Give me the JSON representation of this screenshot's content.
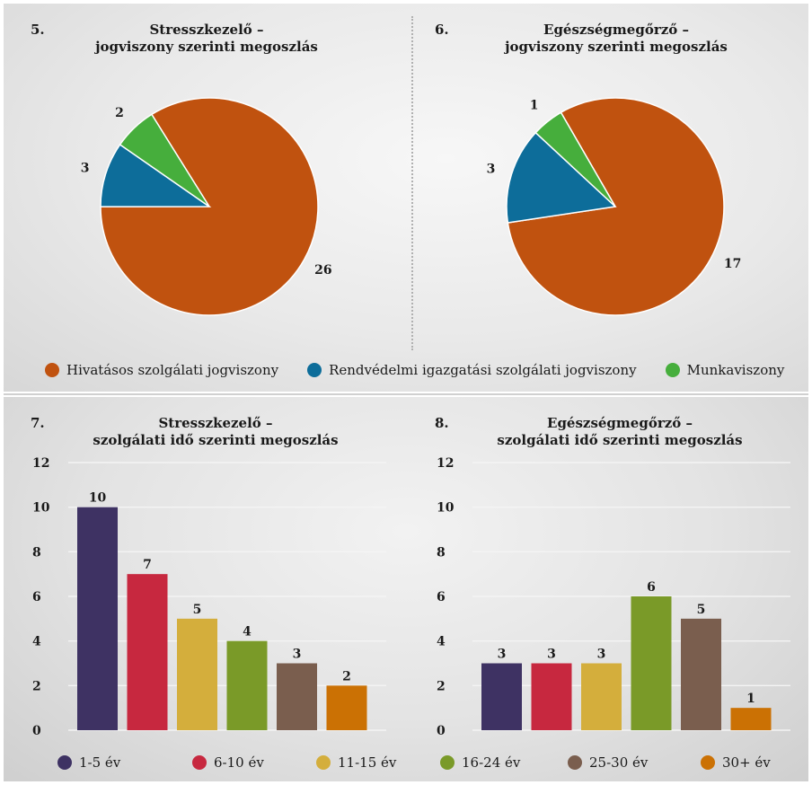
{
  "chart_data": [
    {
      "type": "pie",
      "number": "5.",
      "title_line1": "Stresszkezelő –",
      "title_line2": "jogviszony szerinti megoszlás",
      "categories": [
        "Hivatásos szolgálati jogviszony",
        "Rendvédelmi igazgatási szolgálati jogviszony",
        "Munkaviszony"
      ],
      "values": [
        26,
        3,
        2
      ],
      "labels": [
        "26",
        "3",
        "2"
      ],
      "colors": [
        "#c0520f",
        "#0d6d9a",
        "#46ae3c"
      ]
    },
    {
      "type": "pie",
      "number": "6.",
      "title_line1": "Egészségmegőrző –",
      "title_line2": "jogviszony szerinti megoszlás",
      "categories": [
        "Hivatásos szolgálati jogviszony",
        "Rendvédelmi igazgatási szolgálati jogviszony",
        "Munkaviszony"
      ],
      "values": [
        17,
        3,
        1
      ],
      "labels": [
        "17",
        "3",
        "1"
      ],
      "colors": [
        "#c0520f",
        "#0d6d9a",
        "#46ae3c"
      ]
    },
    {
      "type": "bar",
      "number": "7.",
      "title_line1": "Stresszkezelő –",
      "title_line2": "szolgálati idő szerinti megoszlás",
      "categories": [
        "1-5 év",
        "6-10 év",
        "11-15 év",
        "16-24 év",
        "25-30 év",
        "30+ év"
      ],
      "values": [
        10,
        7,
        5,
        4,
        3,
        2
      ],
      "value_labels": [
        "10",
        "7",
        "5",
        "4",
        "3",
        "2"
      ],
      "yticks": [
        "0",
        "2",
        "4",
        "6",
        "8",
        "10",
        "12"
      ],
      "ylim": [
        0,
        12
      ],
      "grid": true,
      "colors": [
        "#3e3263",
        "#c7283f",
        "#d4ae3c",
        "#7a9a28",
        "#7a5e4e",
        "#cb7104"
      ]
    },
    {
      "type": "bar",
      "number": "8.",
      "title_line1": "Egészségmegőrző –",
      "title_line2": "szolgálati idő szerinti megoszlás",
      "categories": [
        "1-5 év",
        "6-10 év",
        "11-15 év",
        "16-24 év",
        "25-30 év",
        "30+ év"
      ],
      "values": [
        3,
        3,
        3,
        6,
        5,
        1
      ],
      "value_labels": [
        "3",
        "3",
        "3",
        "6",
        "5",
        "1"
      ],
      "yticks": [
        "0",
        "2",
        "4",
        "6",
        "8",
        "10",
        "12"
      ],
      "ylim": [
        0,
        12
      ],
      "grid": true,
      "colors": [
        "#3e3263",
        "#c7283f",
        "#d4ae3c",
        "#7a9a28",
        "#7a5e4e",
        "#cb7104"
      ]
    }
  ],
  "legend_top": [
    {
      "label": "Hivatásos szolgálati jogviszony",
      "color": "#c0520f"
    },
    {
      "label": "Rendvédelmi igazgatási szolgálati jogviszony",
      "color": "#0d6d9a"
    },
    {
      "label": "Munkaviszony",
      "color": "#46ae3c"
    }
  ],
  "legend_bottom": [
    {
      "label": "1-5 év",
      "color": "#3e3263"
    },
    {
      "label": "6-10 év",
      "color": "#c7283f"
    },
    {
      "label": "11-15 év",
      "color": "#d4ae3c"
    },
    {
      "label": "16-24 év",
      "color": "#7a9a28"
    },
    {
      "label": "25-30 év",
      "color": "#7a5e4e"
    },
    {
      "label": "30+ év",
      "color": "#cb7104"
    }
  ]
}
